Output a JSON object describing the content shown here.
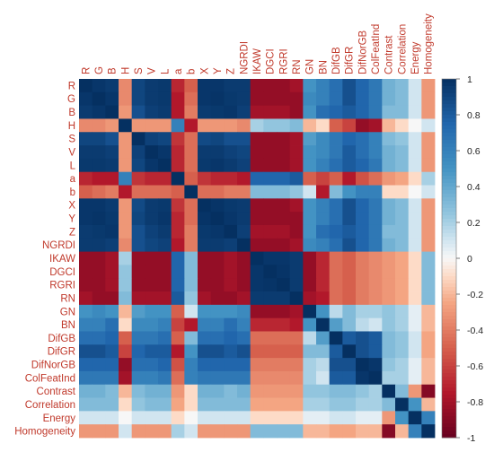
{
  "chart_data": {
    "type": "heatmap",
    "title": "",
    "variables": [
      "R",
      "G",
      "B",
      "H",
      "S",
      "V",
      "L",
      "a",
      "b",
      "X",
      "Y",
      "Z",
      "NGRDI",
      "IKAW",
      "DGCI",
      "RGRI",
      "RN",
      "GN",
      "BN",
      "DifGB",
      "DifGR",
      "DifNorGB",
      "ColFeatInd",
      "Contrast",
      "Correlation",
      "Energy",
      "Homogeneity"
    ],
    "colorbar": {
      "range": [
        -1,
        1
      ],
      "ticks": [
        1,
        0.8,
        0.6,
        0.4,
        0.2,
        0,
        -0.2,
        -0.4,
        -0.6,
        -0.8,
        -1
      ],
      "low_color": "#67001f",
      "mid_color": "#f7f7f7",
      "high_color": "#053061"
    },
    "grid": false,
    "legend": "right",
    "matrix": [
      [
        1,
        0.97,
        0.95,
        -0.35,
        0.9,
        0.95,
        0.96,
        -0.7,
        -0.5,
        0.97,
        0.97,
        0.95,
        0.95,
        -0.85,
        -0.85,
        -0.85,
        -0.8,
        0.5,
        0.6,
        0.7,
        0.85,
        0.75,
        0.65,
        0.35,
        0.3,
        0.1,
        -0.3
      ],
      [
        0.97,
        1,
        0.97,
        -0.35,
        0.9,
        0.95,
        0.96,
        -0.75,
        -0.45,
        0.97,
        0.98,
        0.96,
        0.95,
        -0.85,
        -0.85,
        -0.85,
        -0.85,
        0.55,
        0.6,
        0.7,
        0.85,
        0.75,
        0.65,
        0.35,
        0.3,
        0.1,
        -0.3
      ],
      [
        0.95,
        0.97,
        1,
        -0.3,
        0.85,
        0.93,
        0.95,
        -0.75,
        -0.4,
        0.95,
        0.96,
        0.97,
        0.93,
        -0.8,
        -0.8,
        -0.8,
        -0.85,
        0.5,
        0.7,
        0.75,
        0.8,
        0.75,
        0.65,
        0.3,
        0.3,
        0.1,
        -0.3
      ],
      [
        -0.35,
        -0.35,
        -0.3,
        1,
        -0.3,
        -0.3,
        -0.3,
        0.6,
        -0.75,
        -0.3,
        -0.3,
        -0.3,
        -0.35,
        0.2,
        0.25,
        0.25,
        0.3,
        -0.2,
        -0.1,
        -0.5,
        -0.6,
        -0.85,
        -0.8,
        -0.2,
        -0.1,
        0,
        0.1
      ],
      [
        0.9,
        0.9,
        0.85,
        -0.3,
        1,
        0.92,
        0.9,
        -0.65,
        -0.45,
        0.88,
        0.9,
        0.85,
        0.85,
        -0.85,
        -0.85,
        -0.85,
        -0.8,
        0.45,
        0.55,
        0.65,
        0.75,
        0.7,
        0.6,
        0.3,
        0.25,
        0.1,
        -0.3
      ],
      [
        0.95,
        0.95,
        0.93,
        -0.3,
        0.92,
        1,
        0.97,
        -0.7,
        -0.45,
        0.95,
        0.95,
        0.92,
        0.9,
        -0.85,
        -0.85,
        -0.85,
        -0.8,
        0.5,
        0.55,
        0.65,
        0.8,
        0.7,
        0.6,
        0.35,
        0.3,
        0.1,
        -0.3
      ],
      [
        0.96,
        0.96,
        0.95,
        -0.3,
        0.9,
        0.97,
        1,
        -0.7,
        -0.45,
        0.96,
        0.97,
        0.95,
        0.92,
        -0.85,
        -0.85,
        -0.85,
        -0.8,
        0.5,
        0.6,
        0.7,
        0.8,
        0.75,
        0.65,
        0.35,
        0.3,
        0.1,
        -0.3
      ],
      [
        -0.7,
        -0.75,
        -0.75,
        0.6,
        -0.65,
        -0.7,
        -0.7,
        1,
        -0.5,
        -0.65,
        -0.7,
        -0.7,
        -0.75,
        0.75,
        0.75,
        0.75,
        0.8,
        -0.5,
        -0.6,
        -0.5,
        -0.75,
        -0.55,
        -0.45,
        -0.3,
        -0.25,
        -0.1,
        0.2
      ],
      [
        -0.5,
        -0.45,
        -0.4,
        -0.75,
        -0.45,
        -0.45,
        -0.45,
        -0.5,
        1,
        -0.45,
        -0.45,
        -0.4,
        -0.4,
        0.3,
        0.3,
        0.3,
        0.25,
        0.1,
        -0.75,
        0.3,
        0.5,
        0.6,
        0.6,
        -0.1,
        -0.1,
        0,
        0.1
      ],
      [
        0.97,
        0.97,
        0.95,
        -0.3,
        0.88,
        0.95,
        0.96,
        -0.65,
        -0.45,
        1,
        0.98,
        0.96,
        0.95,
        -0.85,
        -0.85,
        -0.85,
        -0.8,
        0.5,
        0.6,
        0.7,
        0.85,
        0.75,
        0.65,
        0.35,
        0.3,
        0.1,
        -0.3
      ],
      [
        0.97,
        0.98,
        0.96,
        -0.3,
        0.9,
        0.95,
        0.97,
        -0.7,
        -0.45,
        0.98,
        1,
        0.97,
        0.95,
        -0.85,
        -0.85,
        -0.85,
        -0.85,
        0.5,
        0.6,
        0.7,
        0.85,
        0.75,
        0.65,
        0.35,
        0.3,
        0.1,
        -0.3
      ],
      [
        0.95,
        0.96,
        0.97,
        -0.3,
        0.85,
        0.92,
        0.95,
        -0.7,
        -0.4,
        0.96,
        0.97,
        1,
        0.93,
        -0.8,
        -0.8,
        -0.8,
        -0.85,
        0.5,
        0.7,
        0.75,
        0.8,
        0.75,
        0.65,
        0.3,
        0.3,
        0.1,
        -0.3
      ],
      [
        0.95,
        0.95,
        0.93,
        -0.35,
        0.85,
        0.9,
        0.92,
        -0.75,
        -0.4,
        0.95,
        0.95,
        0.93,
        1,
        -0.85,
        -0.85,
        -0.85,
        -0.8,
        0.55,
        0.6,
        0.7,
        0.85,
        0.75,
        0.65,
        0.35,
        0.3,
        0.1,
        -0.3
      ],
      [
        -0.85,
        -0.85,
        -0.8,
        0.2,
        -0.85,
        -0.85,
        -0.85,
        0.75,
        0.3,
        -0.85,
        -0.85,
        -0.8,
        -0.85,
        1,
        0.97,
        0.97,
        0.95,
        -0.85,
        -0.7,
        -0.45,
        -0.5,
        -0.4,
        -0.35,
        -0.3,
        -0.25,
        -0.1,
        0.3
      ],
      [
        -0.85,
        -0.85,
        -0.8,
        0.25,
        -0.85,
        -0.85,
        -0.85,
        0.75,
        0.3,
        -0.85,
        -0.85,
        -0.8,
        -0.85,
        0.97,
        1,
        0.98,
        0.95,
        -0.85,
        -0.7,
        -0.45,
        -0.5,
        -0.4,
        -0.35,
        -0.3,
        -0.25,
        -0.1,
        0.3
      ],
      [
        -0.85,
        -0.85,
        -0.8,
        0.25,
        -0.85,
        -0.85,
        -0.85,
        0.75,
        0.3,
        -0.85,
        -0.85,
        -0.8,
        -0.85,
        0.97,
        0.98,
        1,
        0.95,
        -0.85,
        -0.7,
        -0.45,
        -0.5,
        -0.4,
        -0.35,
        -0.3,
        -0.25,
        -0.1,
        0.3
      ],
      [
        -0.8,
        -0.85,
        -0.85,
        0.3,
        -0.8,
        -0.8,
        -0.8,
        0.8,
        0.25,
        -0.8,
        -0.85,
        -0.85,
        -0.8,
        0.95,
        0.95,
        0.95,
        1,
        -0.8,
        -0.75,
        -0.45,
        -0.5,
        -0.4,
        -0.35,
        -0.3,
        -0.25,
        -0.1,
        0.3
      ],
      [
        0.5,
        0.55,
        0.5,
        -0.2,
        0.45,
        0.5,
        0.5,
        -0.5,
        0.1,
        0.5,
        0.5,
        0.5,
        0.55,
        -0.85,
        -0.85,
        -0.85,
        -0.8,
        1,
        0.5,
        0.15,
        0.3,
        0.2,
        0.2,
        0.25,
        0.2,
        0.05,
        -0.2
      ],
      [
        0.6,
        0.6,
        0.7,
        -0.1,
        0.55,
        0.55,
        0.6,
        -0.6,
        -0.75,
        0.6,
        0.6,
        0.7,
        0.6,
        -0.7,
        -0.7,
        -0.7,
        -0.75,
        0.5,
        1,
        0.45,
        0.3,
        0.15,
        0.1,
        0.25,
        0.2,
        0.05,
        -0.2
      ],
      [
        0.7,
        0.7,
        0.75,
        -0.5,
        0.65,
        0.65,
        0.7,
        -0.5,
        0.3,
        0.7,
        0.7,
        0.75,
        0.7,
        -0.45,
        -0.45,
        -0.45,
        -0.45,
        0.15,
        0.45,
        1,
        0.8,
        0.85,
        0.8,
        0.3,
        0.25,
        0.1,
        -0.25
      ],
      [
        0.85,
        0.85,
        0.8,
        -0.6,
        0.75,
        0.8,
        0.8,
        -0.75,
        0.5,
        0.85,
        0.85,
        0.8,
        0.85,
        -0.5,
        -0.5,
        -0.5,
        -0.5,
        0.3,
        0.3,
        0.8,
        1,
        0.85,
        0.8,
        0.3,
        0.25,
        0.1,
        -0.25
      ],
      [
        0.75,
        0.75,
        0.75,
        -0.85,
        0.7,
        0.7,
        0.75,
        -0.55,
        0.6,
        0.75,
        0.75,
        0.75,
        0.75,
        -0.4,
        -0.4,
        -0.4,
        -0.4,
        0.2,
        0.15,
        0.85,
        0.85,
        1,
        0.97,
        0.25,
        0.2,
        0.05,
        -0.2
      ],
      [
        0.65,
        0.65,
        0.65,
        -0.8,
        0.6,
        0.6,
        0.65,
        -0.45,
        0.6,
        0.65,
        0.65,
        0.65,
        0.65,
        -0.35,
        -0.35,
        -0.35,
        -0.35,
        0.2,
        0.1,
        0.8,
        0.8,
        0.97,
        1,
        0.2,
        0.2,
        0.05,
        -0.2
      ],
      [
        0.35,
        0.35,
        0.3,
        -0.2,
        0.3,
        0.35,
        0.35,
        -0.3,
        -0.1,
        0.35,
        0.35,
        0.3,
        0.35,
        -0.3,
        -0.3,
        -0.3,
        -0.3,
        0.25,
        0.25,
        0.3,
        0.3,
        0.25,
        0.2,
        1,
        0.3,
        -0.3,
        -0.9
      ],
      [
        0.3,
        0.3,
        0.3,
        -0.1,
        0.25,
        0.3,
        0.3,
        -0.25,
        -0.1,
        0.3,
        0.3,
        0.3,
        0.3,
        -0.25,
        -0.25,
        -0.25,
        -0.25,
        0.2,
        0.2,
        0.25,
        0.25,
        0.2,
        0.2,
        0.3,
        1,
        0.5,
        -0.2
      ],
      [
        0.1,
        0.1,
        0.1,
        0,
        0.1,
        0.1,
        0.1,
        -0.1,
        0,
        0.1,
        0.1,
        0.1,
        0.1,
        -0.1,
        -0.1,
        -0.1,
        -0.1,
        0.05,
        0.05,
        0.1,
        0.1,
        0.05,
        0.05,
        -0.3,
        0.5,
        1,
        0.6
      ],
      [
        -0.3,
        -0.3,
        -0.3,
        0.1,
        -0.3,
        -0.3,
        -0.3,
        0.2,
        0.1,
        -0.3,
        -0.3,
        -0.3,
        -0.3,
        0.3,
        0.3,
        0.3,
        0.3,
        -0.2,
        -0.2,
        -0.25,
        -0.25,
        -0.2,
        -0.2,
        -0.9,
        -0.2,
        0.6,
        1
      ]
    ]
  }
}
